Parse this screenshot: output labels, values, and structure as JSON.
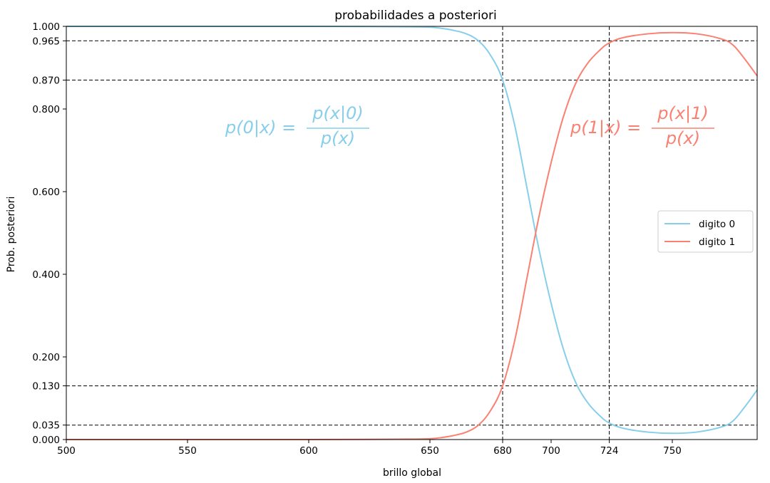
{
  "chart_data": {
    "type": "line",
    "title": "probabilidades a posteriori",
    "xlabel": "brillo global",
    "ylabel": "Prob. posteriori",
    "xlim": [
      500,
      785
    ],
    "ylim": [
      0,
      1
    ],
    "x_ticks": [
      500,
      550,
      600,
      650,
      680,
      700,
      724,
      750
    ],
    "y_ticks": [
      0.0,
      0.035,
      0.13,
      0.2,
      0.4,
      0.6,
      0.8,
      0.87,
      0.965,
      1.0
    ],
    "x_tick_labels": [
      "500",
      "550",
      "600",
      "650",
      "680",
      "700",
      "724",
      "750"
    ],
    "y_tick_labels": [
      "0.000",
      "0.035",
      "0.130",
      "0.200",
      "0.400",
      "0.600",
      "0.800",
      "0.870",
      "0.965",
      "1.000"
    ],
    "hlines": [
      0.965,
      0.87,
      0.13,
      0.035
    ],
    "vlines": [
      680,
      724
    ],
    "grid": false,
    "legend_position": "center-right",
    "series": [
      {
        "name": "digito 0",
        "color": "#87ceeb",
        "points": [
          [
            500,
            1.0
          ],
          [
            600,
            1.0
          ],
          [
            640,
            0.999
          ],
          [
            650,
            0.998
          ],
          [
            655,
            0.995
          ],
          [
            660,
            0.99
          ],
          [
            665,
            0.982
          ],
          [
            670,
            0.965
          ],
          [
            675,
            0.93
          ],
          [
            680,
            0.87
          ],
          [
            685,
            0.76
          ],
          [
            690,
            0.61
          ],
          [
            695,
            0.46
          ],
          [
            700,
            0.33
          ],
          [
            705,
            0.22
          ],
          [
            710,
            0.14
          ],
          [
            715,
            0.09
          ],
          [
            720,
            0.058
          ],
          [
            724,
            0.04
          ],
          [
            730,
            0.027
          ],
          [
            740,
            0.018
          ],
          [
            750,
            0.015
          ],
          [
            760,
            0.018
          ],
          [
            770,
            0.03
          ],
          [
            775,
            0.045
          ],
          [
            780,
            0.08
          ],
          [
            785,
            0.12
          ]
        ]
      },
      {
        "name": "digito 1",
        "color": "#fa8072",
        "points": [
          [
            500,
            0.0
          ],
          [
            600,
            0.0
          ],
          [
            640,
            0.001
          ],
          [
            650,
            0.002
          ],
          [
            655,
            0.005
          ],
          [
            660,
            0.01
          ],
          [
            665,
            0.018
          ],
          [
            670,
            0.035
          ],
          [
            675,
            0.07
          ],
          [
            680,
            0.13
          ],
          [
            685,
            0.24
          ],
          [
            690,
            0.39
          ],
          [
            695,
            0.54
          ],
          [
            700,
            0.67
          ],
          [
            705,
            0.78
          ],
          [
            710,
            0.86
          ],
          [
            715,
            0.91
          ],
          [
            720,
            0.942
          ],
          [
            724,
            0.96
          ],
          [
            730,
            0.973
          ],
          [
            740,
            0.982
          ],
          [
            750,
            0.985
          ],
          [
            760,
            0.982
          ],
          [
            770,
            0.97
          ],
          [
            775,
            0.955
          ],
          [
            780,
            0.92
          ],
          [
            785,
            0.88
          ]
        ]
      }
    ],
    "annotations": [
      {
        "lhs": "p(0|x) =",
        "numerator": "p(x|0)",
        "denominator": "p(x)",
        "color": "#87ceeb"
      },
      {
        "lhs": "p(1|x) =",
        "numerator": "p(x|1)",
        "denominator": "p(x)",
        "color": "#fa8072"
      }
    ]
  }
}
